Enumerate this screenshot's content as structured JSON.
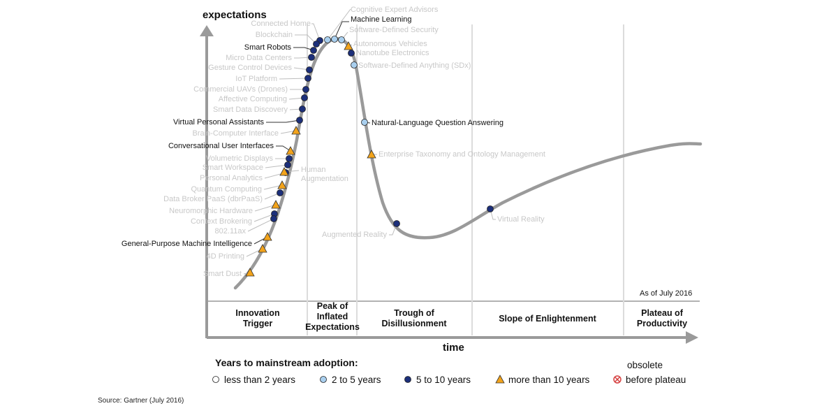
{
  "axes": {
    "y_label": "expectations",
    "x_label": "time",
    "as_of": "As of July 2016"
  },
  "phases": [
    {
      "id": "innovation-trigger",
      "lines": [
        "Innovation",
        "Trigger"
      ]
    },
    {
      "id": "peak",
      "lines": [
        "Peak of",
        "Inflated",
        "Expectations"
      ]
    },
    {
      "id": "trough",
      "lines": [
        "Trough of",
        "Disillusionment"
      ]
    },
    {
      "id": "slope",
      "lines": [
        "Slope of Enlightenment"
      ]
    },
    {
      "id": "plateau",
      "lines": [
        "Plateau of",
        "Productivity"
      ]
    }
  ],
  "legend": {
    "title": "Years to mainstream adoption:",
    "items": [
      {
        "category": "lt2",
        "label": "less than 2 years"
      },
      {
        "category": "2to5",
        "label": "2 to 5 years"
      },
      {
        "category": "5to10",
        "label": "5 to 10 years"
      },
      {
        "category": "gt10",
        "label": "more than 10 years"
      },
      {
        "category": "obsolete",
        "label_top": "obsolete",
        "label": "before plateau"
      }
    ]
  },
  "colors": {
    "lt2": "#ffffff",
    "2to5": "#a9cfee",
    "5to10": "#1c2f7a",
    "gt10": "#f2a31b",
    "obsolete": "#d64040",
    "curve": "#9a9a9a"
  },
  "technologies": [
    {
      "name": "Cognitive Expert Advisors",
      "category": "2to5",
      "faint": true
    },
    {
      "name": "Machine Learning",
      "category": "2to5",
      "faint": false
    },
    {
      "name": "Software-Defined Security",
      "category": "2to5",
      "faint": true
    },
    {
      "name": "Autonomous Vehicles",
      "category": "gt10",
      "faint": true
    },
    {
      "name": "Nanotube Electronics",
      "category": "5to10",
      "faint": true
    },
    {
      "name": "Software-Defined Anything (SDx)",
      "category": "2to5",
      "faint": true
    },
    {
      "name": "Connected Home",
      "category": "5to10",
      "faint": true
    },
    {
      "name": "Blockchain",
      "category": "5to10",
      "faint": true
    },
    {
      "name": "Smart Robots",
      "category": "5to10",
      "faint": false
    },
    {
      "name": "Micro Data Centers",
      "category": "5to10",
      "faint": true
    },
    {
      "name": "Gesture Control Devices",
      "category": "5to10",
      "faint": true
    },
    {
      "name": "IoT Platform",
      "category": "5to10",
      "faint": true
    },
    {
      "name": "Commercial UAVs (Drones)",
      "category": "5to10",
      "faint": true
    },
    {
      "name": "Affective Computing",
      "category": "5to10",
      "faint": true
    },
    {
      "name": "Smart Data Discovery",
      "category": "5to10",
      "faint": true
    },
    {
      "name": "Virtual Personal Assistants",
      "category": "5to10",
      "faint": false
    },
    {
      "name": "Brain-Computer Interface",
      "category": "gt10",
      "faint": true
    },
    {
      "name": "Conversational User Interfaces",
      "category": "gt10",
      "faint": false
    },
    {
      "name": "Volumetric Displays",
      "category": "5to10",
      "faint": true
    },
    {
      "name": "Smart Workspace",
      "category": "5to10",
      "faint": true
    },
    {
      "name": "Personal Analytics",
      "category": "5to10",
      "faint": true
    },
    {
      "name": "Human Augmentation",
      "category": "gt10",
      "faint": true
    },
    {
      "name": "Quantum Computing",
      "category": "gt10",
      "faint": true
    },
    {
      "name": "Data Broker PaaS (dbrPaaS)",
      "category": "5to10",
      "faint": true
    },
    {
      "name": "Neuromorphic Hardware",
      "category": "gt10",
      "faint": true
    },
    {
      "name": "Context Brokering",
      "category": "5to10",
      "faint": true
    },
    {
      "name": "802.11ax",
      "category": "5to10",
      "faint": true
    },
    {
      "name": "General-Purpose Machine Intelligence",
      "category": "gt10",
      "faint": false
    },
    {
      "name": "4D Printing",
      "category": "gt10",
      "faint": true
    },
    {
      "name": "Smart Dust",
      "category": "gt10",
      "faint": true
    },
    {
      "name": "Natural-Language Question Answering",
      "category": "2to5",
      "faint": false
    },
    {
      "name": "Enterprise Taxonomy and Ontology Management",
      "category": "gt10",
      "faint": true
    },
    {
      "name": "Augmented Reality",
      "category": "5to10",
      "faint": true
    },
    {
      "name": "Virtual Reality",
      "category": "5to10",
      "faint": true
    }
  ],
  "source": "Source: Gartner (July 2016)"
}
